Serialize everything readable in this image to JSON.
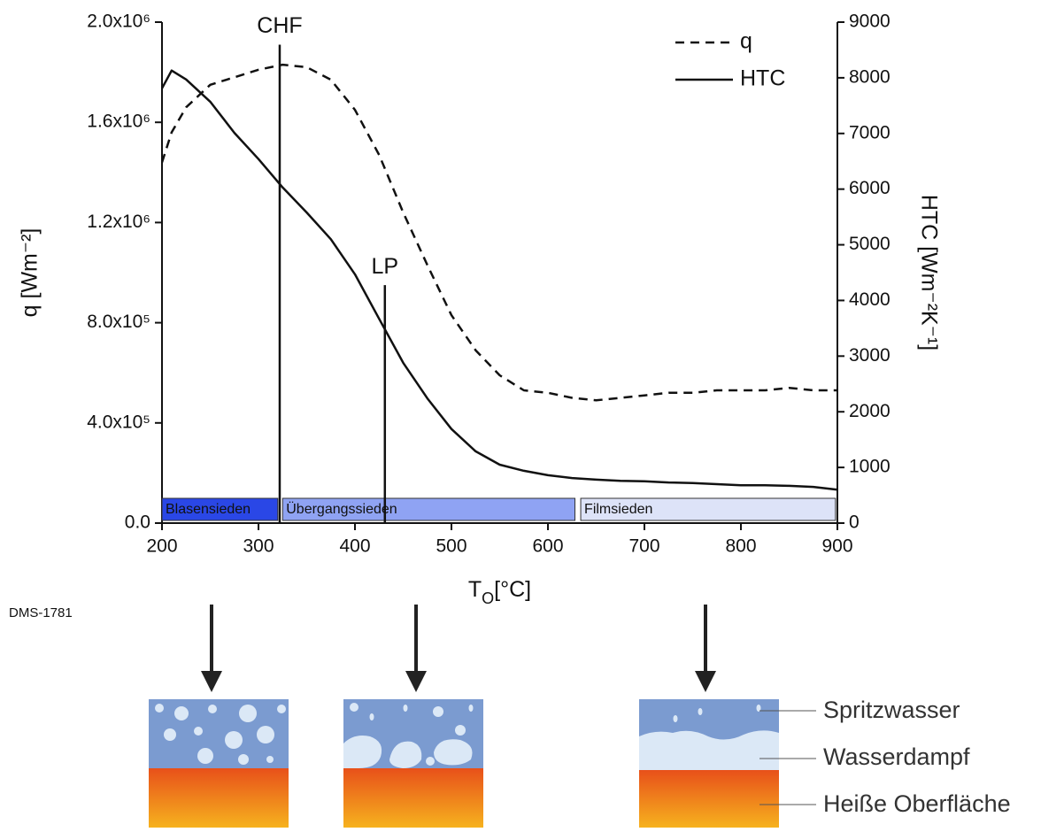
{
  "chart_data": {
    "type": "line",
    "x_label": {
      "base": "T",
      "subscript": "O",
      "unit": "[°C]"
    },
    "y_label": "q [Wm⁻²]",
    "y2_label": "HTC [Wm⁻²K⁻¹]",
    "x": [
      200,
      210,
      225,
      250,
      275,
      300,
      325,
      350,
      375,
      400,
      425,
      450,
      475,
      500,
      525,
      550,
      575,
      600,
      625,
      650,
      675,
      700,
      725,
      750,
      775,
      800,
      825,
      850,
      875,
      900
    ],
    "series": [
      {
        "name": "q",
        "color": "#111111",
        "dash": "dashed",
        "values": [
          1440000,
          1560000,
          1660000,
          1750000,
          1780000,
          1810000,
          1830000,
          1820000,
          1770000,
          1650000,
          1470000,
          1240000,
          1030000,
          830000,
          690000,
          590000,
          530000,
          520000,
          500000,
          490000,
          500000,
          510000,
          520000,
          520000,
          530000,
          530000,
          530000,
          540000,
          530000,
          530000
        ]
      },
      {
        "name": "HTC",
        "color": "#111111",
        "dash": "solid",
        "axis": "y2",
        "values": [
          7810,
          8130,
          7970,
          7570,
          7010,
          6540,
          6030,
          5580,
          5100,
          4470,
          3670,
          2880,
          2240,
          1690,
          1290,
          1050,
          940,
          860,
          810,
          780,
          760,
          750,
          730,
          720,
          700,
          680,
          680,
          670,
          650,
          600
        ]
      }
    ],
    "xlim": [
      200,
      900
    ],
    "xticks": [
      200,
      300,
      400,
      500,
      600,
      700,
      800,
      900
    ],
    "ylim": [
      0,
      2000000
    ],
    "yticks": [
      {
        "value": 0,
        "label": "0.0"
      },
      {
        "value": 400000,
        "label": "4.0x10⁵"
      },
      {
        "value": 800000,
        "label": "8.0x10⁵"
      },
      {
        "value": 1200000,
        "label": "1.2x10⁶"
      },
      {
        "value": 1600000,
        "label": "1.6x10⁶"
      },
      {
        "value": 2000000,
        "label": "2.0x10⁶"
      }
    ],
    "y2lim": [
      0,
      9000
    ],
    "y2ticks": [
      0,
      1000,
      2000,
      3000,
      4000,
      5000,
      6000,
      7000,
      8000,
      9000
    ],
    "legend": "upper right",
    "markers": [
      {
        "label": "CHF",
        "x": 322,
        "y_top": 1910000
      },
      {
        "label": "LP",
        "x": 431,
        "y_top": 950000
      }
    ],
    "regions": [
      {
        "label": "Blasensieden",
        "start": 200,
        "end": 320,
        "color": "#2a47e6"
      },
      {
        "label": "Übergangssieden",
        "start": 325,
        "end": 628,
        "color": "#8fa3f3"
      },
      {
        "label": "Filmsieden",
        "start": 634,
        "end": 898,
        "color": "#dde3f8"
      }
    ]
  },
  "figure_id": "DMS-1781",
  "diagram": {
    "labels": [
      "Spritzwasser",
      "Wasserdampf",
      "Heiße Oberfläche"
    ]
  }
}
